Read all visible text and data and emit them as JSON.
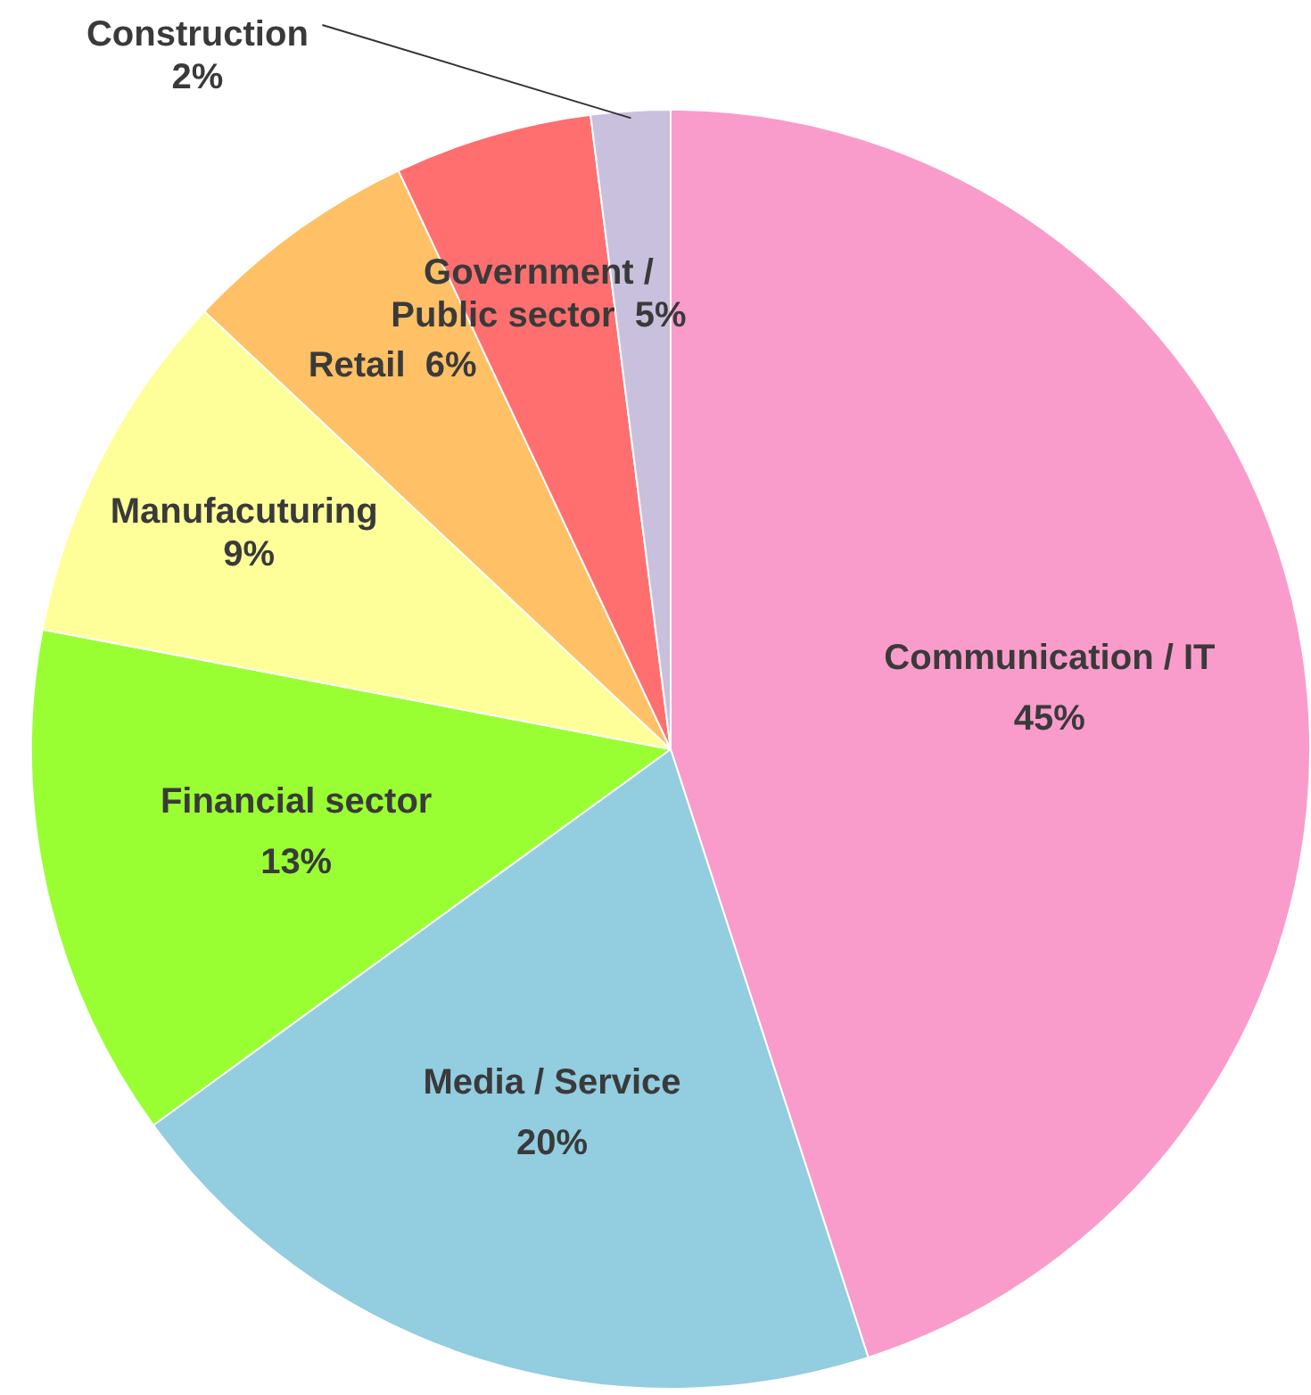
{
  "chart_data": {
    "type": "pie",
    "categories": [
      "Communication / IT",
      "Media / Service",
      "Financial sector",
      "Manufacuturing",
      "Retail",
      "Government / Public sector",
      "Construction"
    ],
    "values": [
      45,
      20,
      13,
      9,
      6,
      5,
      2
    ],
    "colors": [
      "#f99ccb",
      "#92cde0",
      "#99ff33",
      "#ffff99",
      "#ffc066",
      "#ff6f6f",
      "#c8c0dc"
    ],
    "value_labels": [
      "45%",
      "20%",
      "13%",
      "9%",
      "6%",
      "5%",
      "2%"
    ]
  }
}
